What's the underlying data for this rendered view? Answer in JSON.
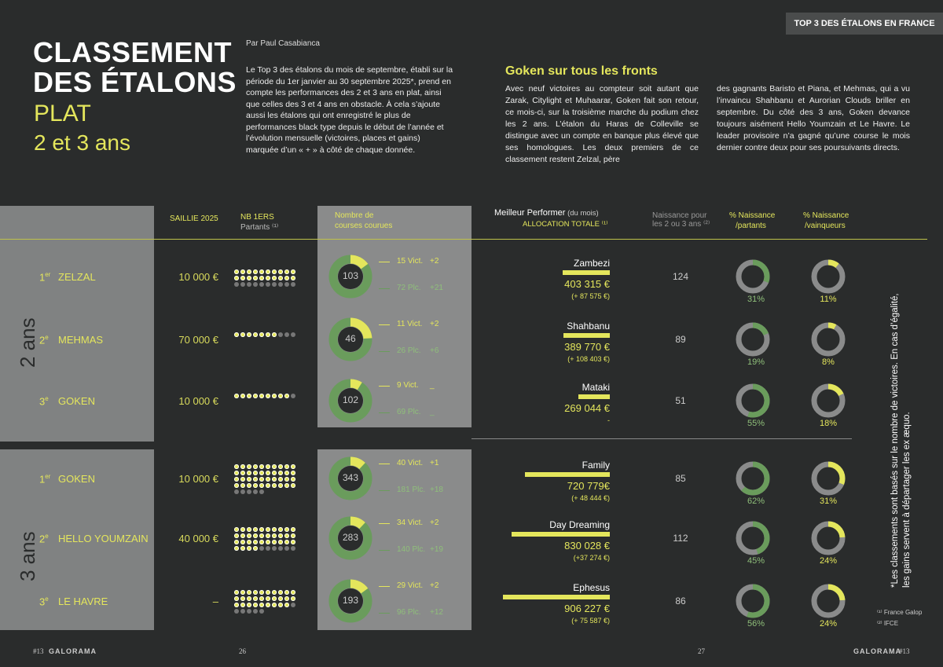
{
  "tag": "TOP 3 DES ÉTALONS EN FRANCE",
  "title_line1": "CLASSEMENT",
  "title_line2": "DES ÉTALONS",
  "subtitle1": "PLAT",
  "subtitle2": "2 et 3 ans",
  "byline": "Par Paul Casabianca",
  "intro": "Le Top 3 des étalons du mois de septembre, établi sur la période du 1er janvier au 30 septembre 2025*, prend en compte les performances des 2 et 3 ans en plat, ainsi que celles des 3 et 4 ans en obstacle. À cela s’ajoute aussi les étalons qui ont enregistré le plus de performances black type depuis le début de l’année et l’évolution mensuelle (victoires, places et gains) marquée d’un « + » à côté de chaque donnée.",
  "article_title": "Goken sur tous les fronts",
  "article_col1": "Avec neuf victoires au compteur soit autant que Zarak, Citylight et Muhaarar, Goken fait son retour, ce mois-ci, sur la troisième marche du podium chez les 2 ans. L’étalon du Haras de Colleville se distingue avec un compte en banque plus élevé que ses homologues. Les deux premiers de ce classement restent Zelzal, père",
  "article_col2": "des gagnants Baristo et Piana, et Mehmas, qui a vu l’invaincu Shahbanu et Aurorian Clouds briller en septembre. Du côté des 3 ans, Goken devance toujours aisément Hello Youmzain et Le Havre. Le leader provisoire n’a gagné qu’une course le mois dernier contre deux pour ses poursuivants directs.",
  "headers": {
    "saillie": "SAILLIE 2025",
    "nb": "NB 1ERS",
    "partants": "Partants ⁽¹⁾",
    "courses1": "Nombre de",
    "courses2": "courses courues",
    "perf_title": "Meilleur Performer",
    "perf_mois": " (du mois)",
    "allocation": "ALLOCATION TOTALE ⁽¹⁾",
    "naiss1": "Naissance pour",
    "naiss2": "les 2 ou 3 ans ⁽²⁾",
    "pctp1": "% Naissance",
    "pctp2": "/partants",
    "pctv1": "% Naissance",
    "pctv2": "/vainqueurs"
  },
  "age_2": "2 ans",
  "age_3": "3 ans",
  "rows": [
    {
      "rank": "1",
      "sup": "er",
      "name": "ZELZAL",
      "saillie": "10 000 €",
      "courses": "103",
      "vict": "15 Vict.",
      "vict_d": "+2",
      "plc": "72 Plc.",
      "plc_d": "+21",
      "performer": "Zambezi",
      "alloc": "403 315 €",
      "delta": "(+ 87 575 €)",
      "naiss": "124",
      "pct_p": "31%",
      "pct_v": "11%",
      "winfrac": 0.15,
      "pfrac": 0.31,
      "vfrac": 0.11,
      "barw": 0.39
    },
    {
      "rank": "2",
      "sup": "e",
      "name": "MEHMAS",
      "saillie": "70 000 €",
      "courses": "46",
      "vict": "11 Vict.",
      "vict_d": "+2",
      "plc": "26 Plc.",
      "plc_d": "+6",
      "performer": "Shahbanu",
      "alloc": "389 770 €",
      "delta": "(+ 108 403 €)",
      "naiss": "89",
      "pct_p": "19%",
      "pct_v": "8%",
      "winfrac": 0.24,
      "pfrac": 0.19,
      "vfrac": 0.08,
      "barw": 0.38
    },
    {
      "rank": "3",
      "sup": "e",
      "name": "GOKEN",
      "saillie": "10 000 €",
      "courses": "102",
      "vict": "9 Vict.",
      "vict_d": "_",
      "plc": "69 Plc.",
      "plc_d": "_",
      "performer": "Mataki",
      "alloc": "269 044 €",
      "delta": "-",
      "naiss": "51",
      "pct_p": "55%",
      "pct_v": "18%",
      "winfrac": 0.09,
      "pfrac": 0.55,
      "vfrac": 0.18,
      "barw": 0.26
    },
    {
      "rank": "1",
      "sup": "er",
      "name": "GOKEN",
      "saillie": "10 000 €",
      "courses": "343",
      "vict": "40 Vict.",
      "vict_d": "+1",
      "plc": "181 Plc.",
      "plc_d": "+18",
      "performer": "Family",
      "alloc": "720 779€",
      "delta": "(+ 48 444 €)",
      "naiss": "85",
      "pct_p": "62%",
      "pct_v": "31%",
      "winfrac": 0.12,
      "pfrac": 0.62,
      "vfrac": 0.31,
      "barw": 0.7
    },
    {
      "rank": "2",
      "sup": "e",
      "name": "HELLO YOUMZAIN",
      "saillie": "40 000 €",
      "courses": "283",
      "vict": "34 Vict.",
      "vict_d": "+2",
      "plc": "140 Plc.",
      "plc_d": "+19",
      "performer": "Day Dreaming",
      "alloc": "830 028 €",
      "delta": "(+37 274 €)",
      "naiss": "112",
      "pct_p": "45%",
      "pct_v": "24%",
      "winfrac": 0.12,
      "pfrac": 0.45,
      "vfrac": 0.24,
      "barw": 0.81
    },
    {
      "rank": "3",
      "sup": "e",
      "name": "LE HAVRE",
      "saillie": "–",
      "courses": "193",
      "vict": "29 Vict.",
      "vict_d": "+2",
      "plc": "96 Plc.",
      "plc_d": "+12",
      "performer": "Ephesus",
      "alloc": "906 227 €",
      "delta": "(+ 75 587 €)",
      "naiss": "86",
      "pct_p": "56%",
      "pct_v": "24%",
      "winfrac": 0.15,
      "pfrac": 0.56,
      "vfrac": 0.24,
      "barw": 0.88
    }
  ],
  "sidenote1": "*Les classements sont basés sur le nombre de victoires. En cas d’égalité,",
  "sidenote2": "les gains servent à départager les ex æquo.",
  "src1": "⁽¹⁾ France Galop",
  "src2": "⁽²⁾ IFCE",
  "footer_left": "#13",
  "footer_brand": "GALORAMA",
  "page_left": "26",
  "page_right": "27",
  "footer_right": "#13",
  "colors": {
    "accent": "#e4e65c",
    "green": "#6a9c5c",
    "grey": "#8a8b8b",
    "bg": "#2a2c2c"
  }
}
